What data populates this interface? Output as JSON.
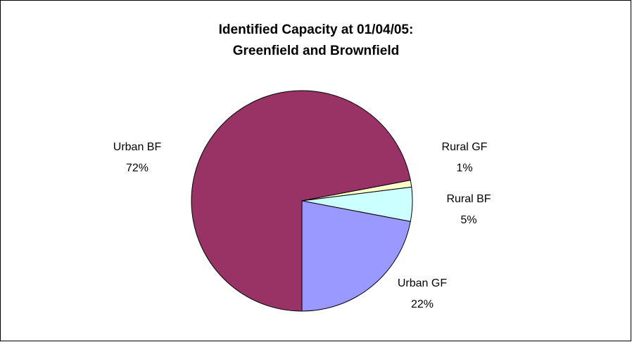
{
  "chart_data": {
    "type": "pie",
    "title": [
      "Identified Capacity at 01/04/05:",
      "Greenfield and Brownfield"
    ],
    "categories": [
      "Urban BF",
      "Rural GF",
      "Rural BF",
      "Urban GF"
    ],
    "values": [
      72,
      1,
      5,
      22
    ],
    "value_labels": [
      "72%",
      "1%",
      "5%",
      "22%"
    ],
    "colors": [
      "#993366",
      "#ffffcc",
      "#ccffff",
      "#9999ff"
    ]
  }
}
